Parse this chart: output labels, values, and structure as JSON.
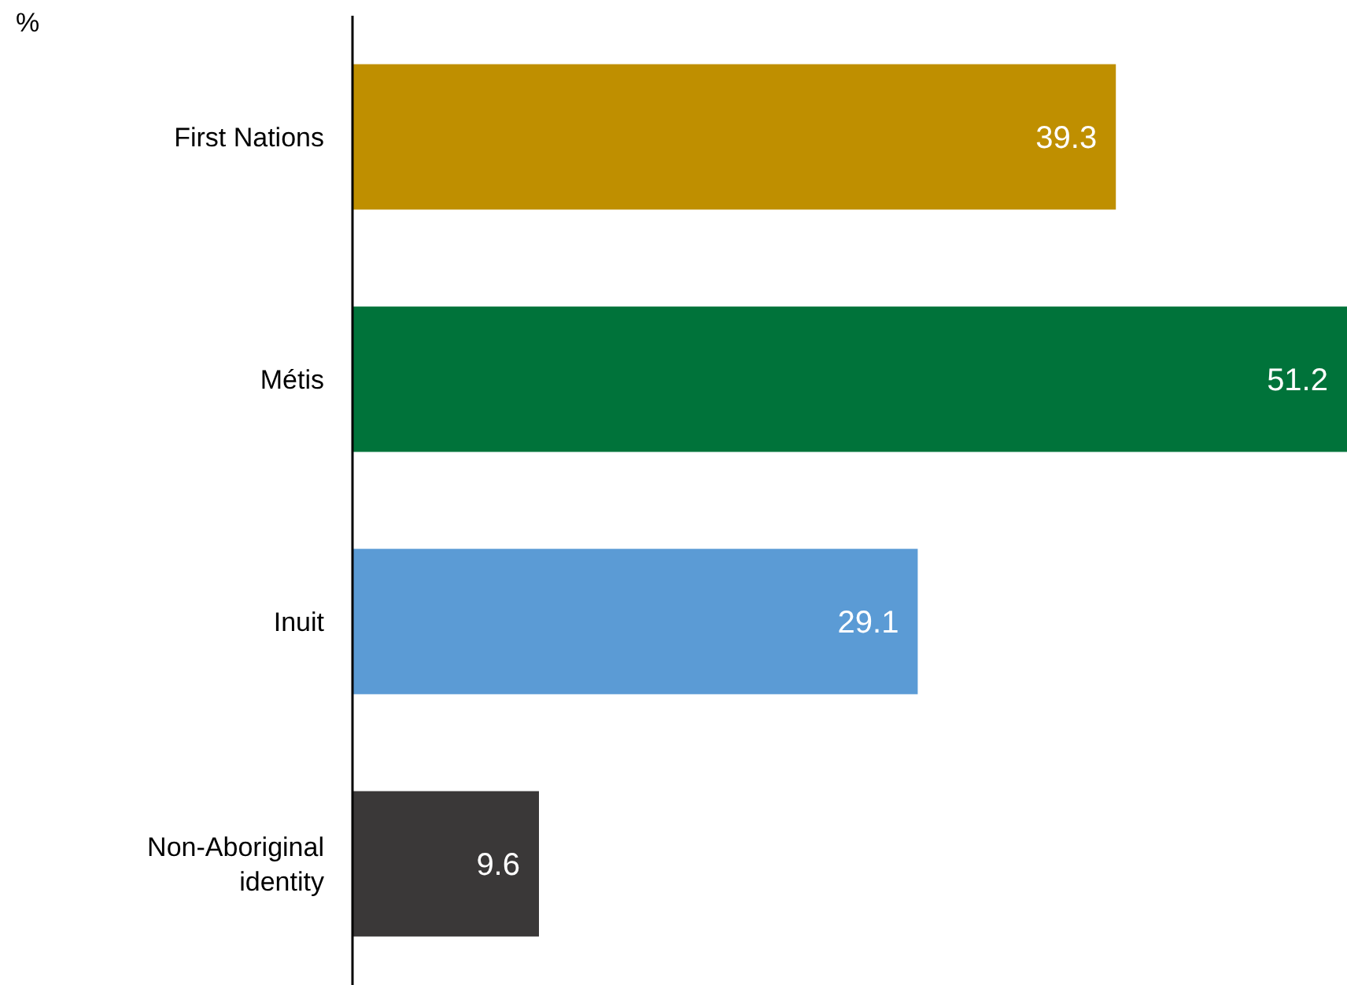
{
  "chart_data": {
    "type": "bar",
    "orientation": "horizontal",
    "xlabel": "%",
    "categories": [
      "First Nations",
      "Métis",
      "Inuit",
      "Non-Aboriginal identity"
    ],
    "values": [
      39.3,
      51.2,
      29.1,
      9.6
    ],
    "colors": [
      "#bf8f00",
      "#00733a",
      "#5b9bd5",
      "#3a3838"
    ],
    "data_labels": true
  }
}
